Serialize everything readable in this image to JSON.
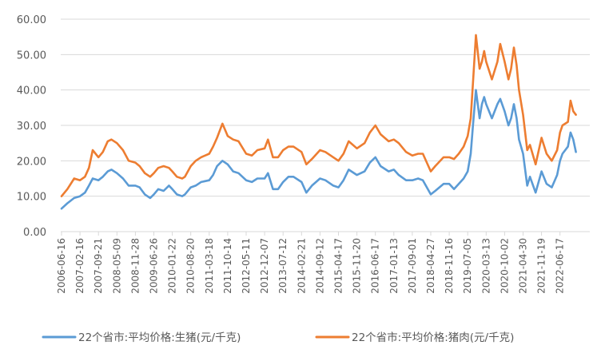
{
  "chart_data": {
    "type": "line",
    "title": "",
    "xlabel": "",
    "ylabel": "",
    "ylim": [
      0,
      60
    ],
    "yticks": [
      "0.00",
      "10.00",
      "20.00",
      "30.00",
      "40.00",
      "50.00",
      "60.00"
    ],
    "x_tick_labels": [
      "2006-06-16",
      "2007-02-16",
      "2007-09-21",
      "2008-05-09",
      "2008-11-28",
      "2009-06-26",
      "2010-01-22",
      "2010-08-20",
      "2011-03-18",
      "2011-10-14",
      "2012-05-11",
      "2012-12-07",
      "2013-07-12",
      "2014-02-21",
      "2014-09-12",
      "2015-04-17",
      "2015-11-20",
      "2016-06-17",
      "2017-01-13",
      "2017-09-01",
      "2018-04-27",
      "2018-11-16",
      "2019-07-05",
      "2020-03-13",
      "2020-10-02",
      "2021-04-30",
      "2021-11-19",
      "2022-06-17"
    ],
    "grid": "horizontal",
    "legend": "bottom",
    "colors": {
      "live_hog": "#5B9BD5",
      "pork": "#ED7D31",
      "axis": "#D9D9D9",
      "text": "#595959"
    },
    "series": [
      {
        "name": "22个省市:平均价格:生猪(元/千克)",
        "points": [
          [
            "2006-06-16",
            6.5
          ],
          [
            "2006-09-01",
            8.0
          ],
          [
            "2006-12-01",
            9.5
          ],
          [
            "2007-02-16",
            10.0
          ],
          [
            "2007-04-15",
            11.0
          ],
          [
            "2007-06-01",
            13.0
          ],
          [
            "2007-07-15",
            15.0
          ],
          [
            "2007-09-21",
            14.5
          ],
          [
            "2007-11-15",
            15.5
          ],
          [
            "2008-01-15",
            17.0
          ],
          [
            "2008-03-01",
            17.5
          ],
          [
            "2008-05-09",
            16.5
          ],
          [
            "2008-07-15",
            15.0
          ],
          [
            "2008-09-15",
            13.0
          ],
          [
            "2008-11-28",
            13.0
          ],
          [
            "2009-01-15",
            12.5
          ],
          [
            "2009-03-15",
            10.5
          ],
          [
            "2009-05-15",
            9.5
          ],
          [
            "2009-06-26",
            10.5
          ],
          [
            "2009-08-15",
            12.0
          ],
          [
            "2009-10-15",
            11.5
          ],
          [
            "2009-12-15",
            13.0
          ],
          [
            "2010-01-22",
            12.0
          ],
          [
            "2010-03-15",
            10.5
          ],
          [
            "2010-05-15",
            10.0
          ],
          [
            "2010-06-15",
            10.5
          ],
          [
            "2010-08-20",
            12.5
          ],
          [
            "2010-10-15",
            13.0
          ],
          [
            "2010-12-15",
            14.0
          ],
          [
            "2011-03-18",
            14.5
          ],
          [
            "2011-05-01",
            16.0
          ],
          [
            "2011-06-15",
            18.5
          ],
          [
            "2011-08-15",
            20.0
          ],
          [
            "2011-10-14",
            19.0
          ],
          [
            "2011-12-15",
            17.0
          ],
          [
            "2012-02-15",
            16.5
          ],
          [
            "2012-05-11",
            14.5
          ],
          [
            "2012-07-15",
            14.0
          ],
          [
            "2012-09-15",
            15.0
          ],
          [
            "2012-12-07",
            15.0
          ],
          [
            "2013-01-15",
            16.5
          ],
          [
            "2013-03-15",
            12.0
          ],
          [
            "2013-05-15",
            12.0
          ],
          [
            "2013-07-12",
            14.0
          ],
          [
            "2013-09-15",
            15.5
          ],
          [
            "2013-11-15",
            15.5
          ],
          [
            "2014-02-21",
            14.0
          ],
          [
            "2014-04-15",
            11.0
          ],
          [
            "2014-06-15",
            13.0
          ],
          [
            "2014-09-12",
            15.0
          ],
          [
            "2014-11-15",
            14.5
          ],
          [
            "2015-02-15",
            13.0
          ],
          [
            "2015-04-17",
            12.5
          ],
          [
            "2015-06-15",
            14.5
          ],
          [
            "2015-08-15",
            17.5
          ],
          [
            "2015-11-20",
            16.0
          ],
          [
            "2016-02-15",
            17.0
          ],
          [
            "2016-04-15",
            19.5
          ],
          [
            "2016-06-17",
            21.0
          ],
          [
            "2016-08-15",
            18.5
          ],
          [
            "2016-11-15",
            17.0
          ],
          [
            "2017-01-13",
            17.5
          ],
          [
            "2017-03-15",
            16.0
          ],
          [
            "2017-06-15",
            14.5
          ],
          [
            "2017-09-01",
            14.5
          ],
          [
            "2017-11-15",
            15.0
          ],
          [
            "2018-01-15",
            14.5
          ],
          [
            "2018-04-27",
            10.5
          ],
          [
            "2018-06-15",
            11.5
          ],
          [
            "2018-09-15",
            13.5
          ],
          [
            "2018-11-16",
            13.5
          ],
          [
            "2019-01-15",
            12.0
          ],
          [
            "2019-03-15",
            13.5
          ],
          [
            "2019-05-15",
            15.0
          ],
          [
            "2019-07-05",
            17.0
          ],
          [
            "2019-08-15",
            22.0
          ],
          [
            "2019-09-15",
            30.0
          ],
          [
            "2019-10-25",
            40.0
          ],
          [
            "2019-12-15",
            32.0
          ],
          [
            "2020-01-15",
            36.0
          ],
          [
            "2020-02-15",
            38.0
          ],
          [
            "2020-03-13",
            36.0
          ],
          [
            "2020-05-15",
            32.0
          ],
          [
            "2020-07-15",
            36.0
          ],
          [
            "2020-08-15",
            37.5
          ],
          [
            "2020-10-02",
            34.0
          ],
          [
            "2020-11-15",
            30.0
          ],
          [
            "2020-12-15",
            32.0
          ],
          [
            "2021-01-15",
            36.0
          ],
          [
            "2021-02-15",
            32.0
          ],
          [
            "2021-03-15",
            26.0
          ],
          [
            "2021-04-30",
            22.0
          ],
          [
            "2021-06-15",
            13.0
          ],
          [
            "2021-07-15",
            15.5
          ],
          [
            "2021-09-15",
            11.0
          ],
          [
            "2021-11-19",
            17.0
          ],
          [
            "2022-01-15",
            13.5
          ],
          [
            "2022-03-15",
            12.5
          ],
          [
            "2022-05-15",
            16.0
          ],
          [
            "2022-06-17",
            20.0
          ],
          [
            "2022-07-15",
            22.0
          ],
          [
            "2022-09-15",
            24.0
          ],
          [
            "2022-10-15",
            28.0
          ],
          [
            "2022-11-15",
            26.0
          ],
          [
            "2022-12-15",
            22.5
          ]
        ]
      },
      {
        "name": "22个省市:平均价格:猪肉(元/千克)",
        "points": [
          [
            "2006-06-16",
            10.0
          ],
          [
            "2006-09-01",
            12.0
          ],
          [
            "2006-12-01",
            15.0
          ],
          [
            "2007-02-16",
            14.5
          ],
          [
            "2007-04-15",
            15.5
          ],
          [
            "2007-06-01",
            18.0
          ],
          [
            "2007-07-15",
            23.0
          ],
          [
            "2007-09-21",
            21.0
          ],
          [
            "2007-11-15",
            22.5
          ],
          [
            "2008-01-15",
            25.5
          ],
          [
            "2008-03-01",
            26.0
          ],
          [
            "2008-05-09",
            25.0
          ],
          [
            "2008-07-15",
            23.0
          ],
          [
            "2008-09-15",
            20.0
          ],
          [
            "2008-11-28",
            19.5
          ],
          [
            "2009-01-15",
            18.5
          ],
          [
            "2009-03-15",
            16.5
          ],
          [
            "2009-05-15",
            15.5
          ],
          [
            "2009-06-26",
            16.5
          ],
          [
            "2009-08-15",
            18.0
          ],
          [
            "2009-10-15",
            18.5
          ],
          [
            "2009-12-15",
            18.0
          ],
          [
            "2010-01-22",
            17.0
          ],
          [
            "2010-03-15",
            15.5
          ],
          [
            "2010-05-15",
            15.0
          ],
          [
            "2010-06-15",
            15.5
          ],
          [
            "2010-08-20",
            18.5
          ],
          [
            "2010-10-15",
            20.0
          ],
          [
            "2010-12-15",
            21.0
          ],
          [
            "2011-03-18",
            22.0
          ],
          [
            "2011-05-01",
            24.0
          ],
          [
            "2011-06-15",
            26.5
          ],
          [
            "2011-08-15",
            30.5
          ],
          [
            "2011-10-14",
            27.0
          ],
          [
            "2011-12-15",
            26.0
          ],
          [
            "2012-02-15",
            25.5
          ],
          [
            "2012-05-11",
            22.0
          ],
          [
            "2012-07-15",
            21.5
          ],
          [
            "2012-09-15",
            23.0
          ],
          [
            "2012-12-07",
            23.5
          ],
          [
            "2013-01-15",
            26.0
          ],
          [
            "2013-03-15",
            21.0
          ],
          [
            "2013-05-15",
            21.0
          ],
          [
            "2013-07-12",
            23.0
          ],
          [
            "2013-09-15",
            24.0
          ],
          [
            "2013-11-15",
            24.0
          ],
          [
            "2014-02-21",
            22.5
          ],
          [
            "2014-04-15",
            19.0
          ],
          [
            "2014-06-15",
            20.5
          ],
          [
            "2014-09-12",
            23.0
          ],
          [
            "2014-11-15",
            22.5
          ],
          [
            "2015-02-15",
            21.0
          ],
          [
            "2015-04-17",
            20.0
          ],
          [
            "2015-06-15",
            22.0
          ],
          [
            "2015-08-15",
            25.5
          ],
          [
            "2015-11-20",
            23.5
          ],
          [
            "2016-02-15",
            25.0
          ],
          [
            "2016-04-15",
            28.0
          ],
          [
            "2016-06-17",
            30.0
          ],
          [
            "2016-08-15",
            27.5
          ],
          [
            "2016-11-15",
            25.5
          ],
          [
            "2017-01-13",
            26.0
          ],
          [
            "2017-03-15",
            25.0
          ],
          [
            "2017-06-15",
            22.5
          ],
          [
            "2017-09-01",
            21.5
          ],
          [
            "2017-11-15",
            22.0
          ],
          [
            "2018-01-15",
            22.0
          ],
          [
            "2018-04-27",
            17.0
          ],
          [
            "2018-06-15",
            18.5
          ],
          [
            "2018-09-15",
            21.0
          ],
          [
            "2018-11-16",
            21.0
          ],
          [
            "2019-01-15",
            20.5
          ],
          [
            "2019-03-15",
            22.0
          ],
          [
            "2019-05-15",
            24.0
          ],
          [
            "2019-07-05",
            27.0
          ],
          [
            "2019-08-15",
            32.0
          ],
          [
            "2019-09-15",
            42.0
          ],
          [
            "2019-10-25",
            55.5
          ],
          [
            "2019-12-15",
            46.0
          ],
          [
            "2020-01-15",
            48.0
          ],
          [
            "2020-02-15",
            51.0
          ],
          [
            "2020-03-13",
            48.0
          ],
          [
            "2020-05-15",
            43.0
          ],
          [
            "2020-07-15",
            48.0
          ],
          [
            "2020-08-15",
            53.0
          ],
          [
            "2020-10-02",
            48.0
          ],
          [
            "2020-11-15",
            43.0
          ],
          [
            "2020-12-15",
            46.0
          ],
          [
            "2021-01-15",
            52.0
          ],
          [
            "2021-02-15",
            47.0
          ],
          [
            "2021-03-15",
            40.0
          ],
          [
            "2021-04-30",
            33.0
          ],
          [
            "2021-06-15",
            23.0
          ],
          [
            "2021-07-15",
            24.5
          ],
          [
            "2021-09-15",
            19.0
          ],
          [
            "2021-11-19",
            26.5
          ],
          [
            "2022-01-15",
            22.0
          ],
          [
            "2022-03-15",
            20.0
          ],
          [
            "2022-05-15",
            23.0
          ],
          [
            "2022-06-17",
            28.0
          ],
          [
            "2022-07-15",
            30.0
          ],
          [
            "2022-09-15",
            31.0
          ],
          [
            "2022-10-15",
            37.0
          ],
          [
            "2022-11-15",
            34.0
          ],
          [
            "2022-12-15",
            33.0
          ]
        ]
      }
    ]
  }
}
